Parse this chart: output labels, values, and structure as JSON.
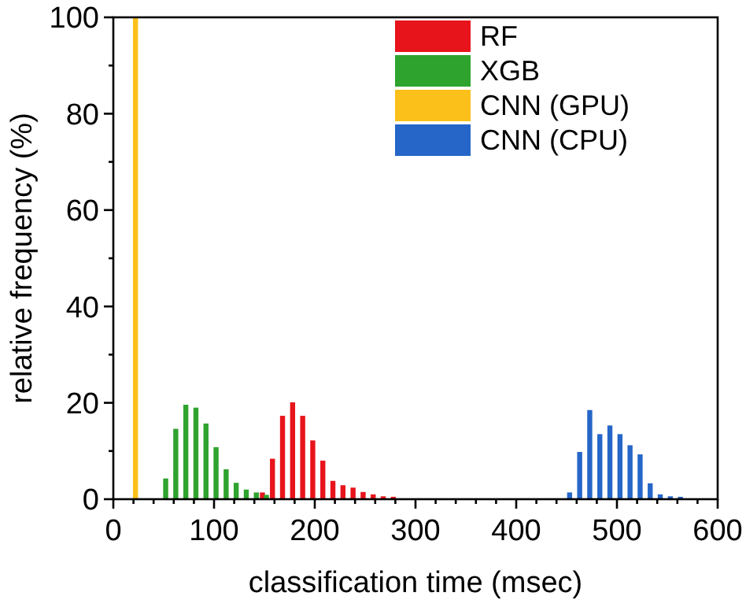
{
  "chart_data": {
    "type": "bar",
    "xlabel": "classification time (msec)",
    "ylabel": "relative frequency (%)",
    "xlim": [
      0,
      600
    ],
    "xticks": [
      0,
      {
        "value": 20,
        "label": null
      },
      {
        "value": 40,
        "label": null
      },
      {
        "value": 60,
        "label": null
      },
      {
        "value": 80,
        "label": null
      },
      100,
      {
        "value": 120,
        "label": null
      },
      {
        "value": 140,
        "label": null
      },
      {
        "value": 160,
        "label": null
      },
      {
        "value": 180,
        "label": null
      },
      200,
      {
        "value": 220,
        "label": null
      },
      {
        "value": 240,
        "label": null
      },
      {
        "value": 260,
        "label": null
      },
      {
        "value": 280,
        "label": null
      },
      300,
      {
        "value": 320,
        "label": null
      },
      {
        "value": 340,
        "label": null
      },
      {
        "value": 360,
        "label": null
      },
      {
        "value": 380,
        "label": null
      },
      400,
      {
        "value": 420,
        "label": null
      },
      {
        "value": 440,
        "label": null
      },
      {
        "value": 460,
        "label": null
      },
      {
        "value": 480,
        "label": null
      },
      500,
      {
        "value": 520,
        "label": null
      },
      {
        "value": 540,
        "label": null
      },
      {
        "value": 560,
        "label": null
      },
      {
        "value": 580,
        "label": null
      },
      600
    ],
    "ylim": [
      0,
      100
    ],
    "yticks": [
      0,
      {
        "value": 10,
        "label": null
      },
      20,
      {
        "value": 30,
        "label": null
      },
      40,
      {
        "value": 50,
        "label": null
      },
      60,
      {
        "value": 70,
        "label": null
      },
      80,
      {
        "value": 90,
        "label": null
      },
      100
    ],
    "legend": "top right",
    "grid": false,
    "series": [
      {
        "name": "RF",
        "color": "#e8141c",
        "x": [
          148,
          158,
          168,
          178,
          188,
          198,
          208,
          218,
          228,
          238,
          248,
          258,
          268,
          278
        ],
        "values": [
          1.4,
          8.4,
          17.3,
          20.1,
          17.3,
          12.2,
          8.0,
          3.8,
          2.9,
          2.4,
          1.5,
          1.0,
          0.6,
          0.5
        ]
      },
      {
        "name": "XGB",
        "color": "#2ea32e",
        "x": [
          52,
          62,
          72,
          82,
          92,
          102,
          112,
          122,
          132,
          142,
          152
        ],
        "values": [
          4.3,
          14.6,
          19.6,
          19.0,
          15.7,
          10.8,
          6.2,
          3.4,
          2.0,
          1.4,
          0.9
        ]
      },
      {
        "name": "CNN (GPU)",
        "color": "#fbc01a",
        "x": [
          22
        ],
        "values": [
          100
        ]
      },
      {
        "name": "CNN (CPU)",
        "color": "#2566c8",
        "x": [
          453,
          463,
          473,
          483,
          493,
          503,
          513,
          523,
          533,
          543,
          553,
          563
        ],
        "values": [
          1.4,
          9.8,
          18.5,
          13.5,
          15.3,
          13.5,
          11.2,
          9.3,
          3.3,
          1.0,
          0.6,
          0.5
        ]
      }
    ]
  }
}
